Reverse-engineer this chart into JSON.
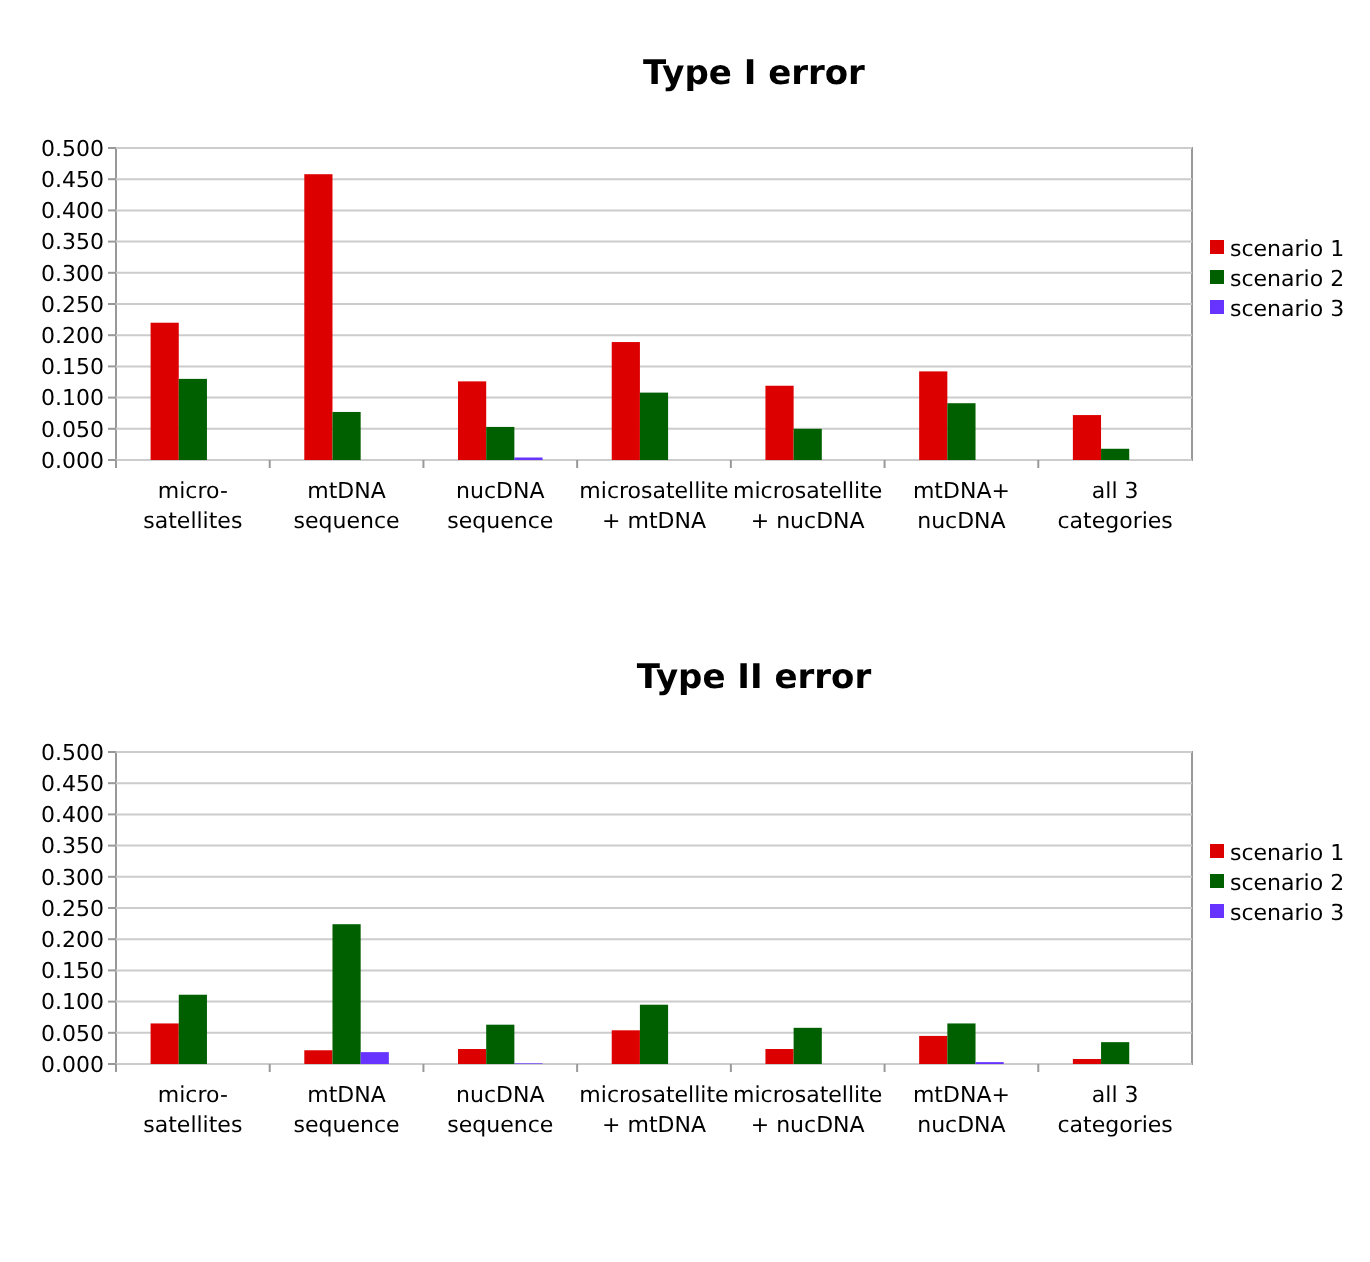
{
  "chart_data": [
    {
      "type": "bar",
      "title": "Type I error",
      "categories": [
        "micro-\nsatellites",
        "mtDNA\nsequence",
        "nucDNA\nsequence",
        "microsatellite\n+ mtDNA",
        "microsatellite\n+ nucDNA",
        "mtDNA+\nnucDNA",
        "all 3\ncategories"
      ],
      "series": [
        {
          "name": "scenario 1",
          "color": "#dd0000",
          "values": [
            0.22,
            0.458,
            0.126,
            0.189,
            0.119,
            0.142,
            0.072
          ]
        },
        {
          "name": "scenario 2",
          "color": "#006000",
          "values": [
            0.13,
            0.077,
            0.053,
            0.108,
            0.05,
            0.091,
            0.018
          ]
        },
        {
          "name": "scenario 3",
          "color": "#6633ff",
          "values": [
            0,
            0,
            0.004,
            0,
            0,
            0,
            0
          ]
        }
      ],
      "ylim": [
        0,
        0.5
      ],
      "yticks": [
        {
          "value": 0,
          "label": "0.000"
        },
        {
          "value": 0.05,
          "label": "0.050"
        },
        {
          "value": 0.1,
          "label": "0.100"
        },
        {
          "value": 0.15,
          "label": "0.150"
        },
        {
          "value": 0.2,
          "label": "0.200"
        },
        {
          "value": 0.25,
          "label": "0.250"
        },
        {
          "value": 0.3,
          "label": "0.300"
        },
        {
          "value": 0.35,
          "label": "0.350"
        },
        {
          "value": 0.4,
          "label": "0.400"
        },
        {
          "value": 0.45,
          "label": "0.450"
        },
        {
          "value": 0.5,
          "label": "0.500"
        }
      ],
      "grid": "y",
      "legend": "right"
    },
    {
      "type": "bar",
      "title": "Type II error",
      "categories": [
        "micro-\nsatellites",
        "mtDNA\nsequence",
        "nucDNA\nsequence",
        "microsatellite\n+ mtDNA",
        "microsatellite\n+ nucDNA",
        "mtDNA+\nnucDNA",
        "all 3\ncategories"
      ],
      "series": [
        {
          "name": "scenario 1",
          "color": "#dd0000",
          "values": [
            0.065,
            0.022,
            0.024,
            0.054,
            0.024,
            0.045,
            0.008
          ]
        },
        {
          "name": "scenario 2",
          "color": "#006000",
          "values": [
            0.111,
            0.224,
            0.063,
            0.095,
            0.058,
            0.065,
            0.035
          ]
        },
        {
          "name": "scenario 3",
          "color": "#6633ff",
          "values": [
            0,
            0.019,
            0.001,
            0,
            0,
            0.003,
            0
          ]
        }
      ],
      "ylim": [
        0,
        0.5
      ],
      "yticks": [
        {
          "value": 0,
          "label": "0.000"
        },
        {
          "value": 0.05,
          "label": "0.050"
        },
        {
          "value": 0.1,
          "label": "0.100"
        },
        {
          "value": 0.15,
          "label": "0.150"
        },
        {
          "value": 0.2,
          "label": "0.200"
        },
        {
          "value": 0.25,
          "label": "0.250"
        },
        {
          "value": 0.3,
          "label": "0.300"
        },
        {
          "value": 0.35,
          "label": "0.350"
        },
        {
          "value": 0.4,
          "label": "0.400"
        },
        {
          "value": 0.45,
          "label": "0.450"
        },
        {
          "value": 0.5,
          "label": "0.500"
        }
      ],
      "grid": "y",
      "legend": "right"
    }
  ]
}
